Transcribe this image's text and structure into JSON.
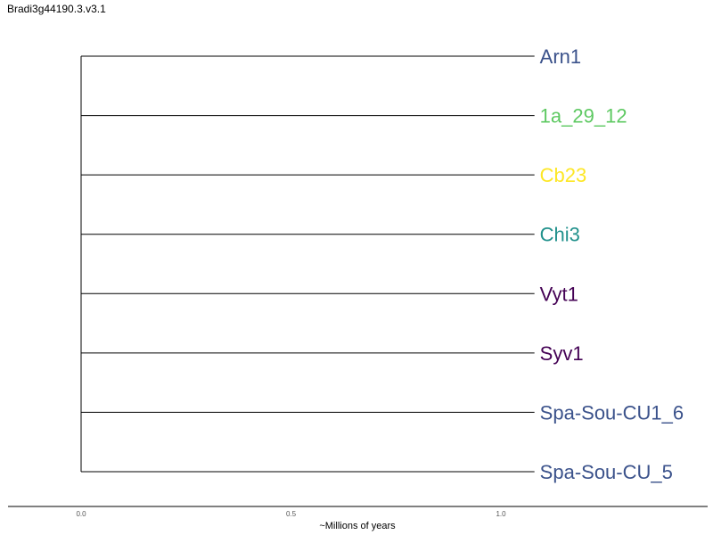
{
  "chart_data": {
    "type": "dendrogram",
    "title": "Bradi3g44190.3.v3.1",
    "xlabel": "~Millions of years",
    "xlim": [
      0.0,
      1.0
    ],
    "x_ticks": [
      {
        "value": 0.0,
        "label": "0.0"
      },
      {
        "value": 0.5,
        "label": "0.5"
      },
      {
        "value": 1.0,
        "label": "1.0"
      }
    ],
    "root_x": 0.0,
    "leaf_x": 1.08,
    "leaves": [
      {
        "name": "Arn1",
        "color": "#3b528b"
      },
      {
        "name": "1a_29_12",
        "color": "#5ec962"
      },
      {
        "name": "Cb23",
        "color": "#fde725"
      },
      {
        "name": "Chi3",
        "color": "#21918c"
      },
      {
        "name": "Vyt1",
        "color": "#440154"
      },
      {
        "name": "Syv1",
        "color": "#440154"
      },
      {
        "name": "Spa-Sou-CU1_6",
        "color": "#3b528b"
      },
      {
        "name": "Spa-Sou-CU_5",
        "color": "#3b528b"
      }
    ]
  }
}
